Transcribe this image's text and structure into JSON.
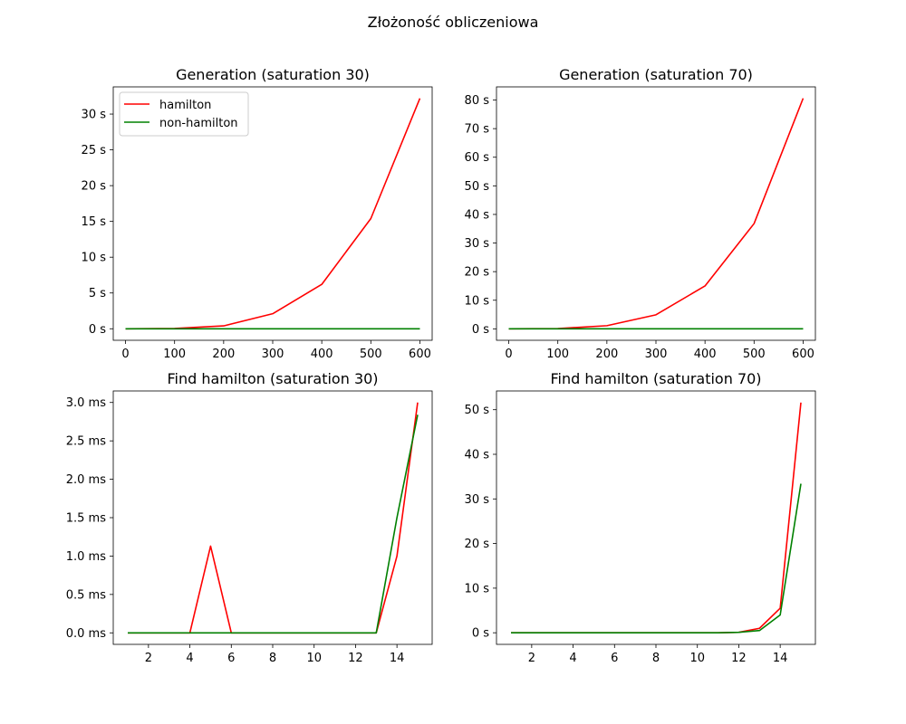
{
  "figure": {
    "suptitle": "Złożoność obliczeniowa"
  },
  "colors": {
    "hamilton": "#ff0000",
    "non_hamilton": "#008000",
    "axis": "#000000"
  },
  "chart_data": [
    {
      "type": "line",
      "title": "Generation (saturation 30)",
      "xlabel": "",
      "ylabel": "",
      "x": [
        0,
        100,
        200,
        300,
        400,
        500,
        600
      ],
      "xlim": [
        -25,
        625
      ],
      "ylim": [
        -1.61,
        33.8
      ],
      "xticks": [
        0,
        100,
        200,
        300,
        400,
        500,
        600
      ],
      "xtick_labels": [
        "0",
        "100",
        "200",
        "300",
        "400",
        "500",
        "600"
      ],
      "yticks": [
        0,
        5,
        10,
        15,
        20,
        25,
        30
      ],
      "ytick_labels": [
        "0 s",
        "5 s",
        "10 s",
        "15 s",
        "20 s",
        "25 s",
        "30 s"
      ],
      "legend": {
        "position": "upper-left",
        "entries": [
          "hamilton",
          "non-hamilton"
        ]
      },
      "series": [
        {
          "name": "hamilton",
          "color": "#ff0000",
          "values": [
            0.0,
            0.05,
            0.4,
            2.1,
            6.2,
            15.4,
            32.2
          ]
        },
        {
          "name": "non-hamilton",
          "color": "#008000",
          "values": [
            0.0,
            0.0,
            0.0,
            0.0,
            0.0,
            0.0,
            0.0
          ]
        }
      ]
    },
    {
      "type": "line",
      "title": "Generation (saturation 70)",
      "xlabel": "",
      "ylabel": "",
      "x": [
        0,
        100,
        200,
        300,
        400,
        500,
        600
      ],
      "xlim": [
        -25,
        625
      ],
      "ylim": [
        -4.0,
        84.6
      ],
      "xticks": [
        0,
        100,
        200,
        300,
        400,
        500,
        600
      ],
      "xtick_labels": [
        "0",
        "100",
        "200",
        "300",
        "400",
        "500",
        "600"
      ],
      "yticks": [
        0,
        10,
        20,
        30,
        40,
        50,
        60,
        70,
        80
      ],
      "ytick_labels": [
        "0 s",
        "10 s",
        "20 s",
        "30 s",
        "40 s",
        "50 s",
        "60 s",
        "70 s",
        "80 s"
      ],
      "series": [
        {
          "name": "hamilton",
          "color": "#ff0000",
          "values": [
            0.0,
            0.1,
            1.1,
            4.9,
            15.0,
            36.8,
            80.6
          ]
        },
        {
          "name": "non-hamilton",
          "color": "#008000",
          "values": [
            0.0,
            0.0,
            0.0,
            0.0,
            0.0,
            0.0,
            0.0
          ]
        }
      ]
    },
    {
      "type": "line",
      "title": "Find hamilton (saturation 30)",
      "xlabel": "",
      "ylabel": "",
      "x": [
        1,
        2,
        3,
        4,
        5,
        6,
        7,
        8,
        9,
        10,
        11,
        12,
        13,
        14,
        15
      ],
      "xlim": [
        0.3,
        15.7
      ],
      "ylim": [
        -0.15,
        3.15
      ],
      "xticks": [
        2,
        4,
        6,
        8,
        10,
        12,
        14
      ],
      "xtick_labels": [
        "2",
        "4",
        "6",
        "8",
        "10",
        "12",
        "14"
      ],
      "yticks": [
        0,
        0.5,
        1.0,
        1.5,
        2.0,
        2.5,
        3.0
      ],
      "ytick_labels": [
        "0.0 ms",
        "0.5 ms",
        "1.0 ms",
        "1.5 ms",
        "2.0 ms",
        "2.5 ms",
        "3.0 ms"
      ],
      "series": [
        {
          "name": "hamilton",
          "color": "#ff0000",
          "values": [
            0,
            0,
            0,
            0,
            1.13,
            0,
            0,
            0,
            0,
            0,
            0,
            0,
            0,
            1.0,
            3.0
          ]
        },
        {
          "name": "non-hamilton",
          "color": "#008000",
          "values": [
            0,
            0,
            0,
            0,
            0,
            0,
            0,
            0,
            0,
            0,
            0,
            0,
            0,
            1.5,
            2.84
          ]
        }
      ]
    },
    {
      "type": "line",
      "title": "Find hamilton (saturation 70)",
      "xlabel": "",
      "ylabel": "",
      "x": [
        1,
        2,
        3,
        4,
        5,
        6,
        7,
        8,
        9,
        10,
        11,
        12,
        13,
        14,
        15
      ],
      "xlim": [
        0.3,
        15.7
      ],
      "ylim": [
        -2.6,
        54.2
      ],
      "xticks": [
        2,
        4,
        6,
        8,
        10,
        12,
        14
      ],
      "xtick_labels": [
        "2",
        "4",
        "6",
        "8",
        "10",
        "12",
        "14"
      ],
      "yticks": [
        0,
        10,
        20,
        30,
        40,
        50
      ],
      "ytick_labels": [
        "0 s",
        "10 s",
        "20 s",
        "30 s",
        "40 s",
        "50 s"
      ],
      "series": [
        {
          "name": "hamilton",
          "color": "#ff0000",
          "values": [
            0,
            0,
            0,
            0,
            0,
            0,
            0,
            0,
            0,
            0,
            0,
            0.1,
            1.0,
            5.5,
            51.6
          ]
        },
        {
          "name": "non-hamilton",
          "color": "#008000",
          "values": [
            0,
            0,
            0,
            0,
            0,
            0,
            0,
            0,
            0,
            0,
            0,
            0.1,
            0.5,
            4.0,
            33.4
          ]
        }
      ]
    }
  ]
}
